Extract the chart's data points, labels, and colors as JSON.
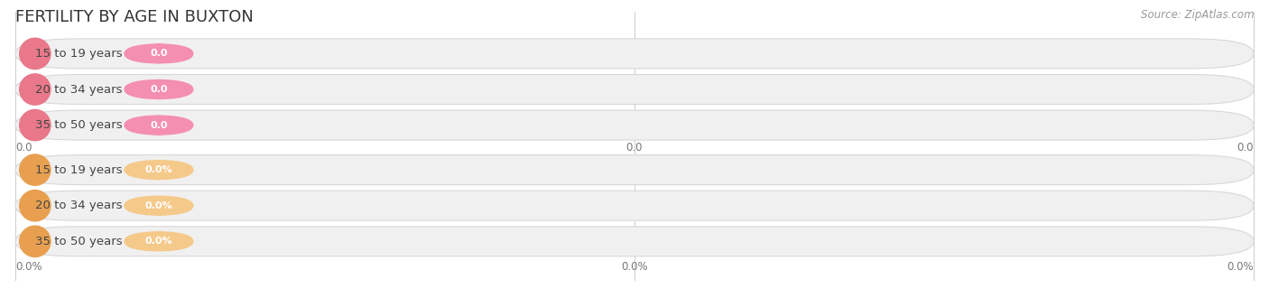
{
  "title": "FERTILITY BY AGE IN BUXTON",
  "source": "Source: ZipAtlas.com",
  "top_group": {
    "labels": [
      "15 to 19 years",
      "20 to 34 years",
      "35 to 50 years"
    ],
    "value_labels": [
      "0.0",
      "0.0",
      "0.0"
    ],
    "pill_color": "#f48fb1",
    "circle_color": "#e8788a",
    "bg_color": "#f0f0f0",
    "border_color": "#d8d8d8"
  },
  "bottom_group": {
    "labels": [
      "15 to 19 years",
      "20 to 34 years",
      "35 to 50 years"
    ],
    "value_labels": [
      "0.0%",
      "0.0%",
      "0.0%"
    ],
    "pill_color": "#f5c98a",
    "circle_color": "#e8a050",
    "bg_color": "#f0f0f0",
    "border_color": "#d8d8d8"
  },
  "top_tick_label": "0.0",
  "bottom_tick_label": "0.0%",
  "figsize": [
    14.06,
    3.3
  ],
  "dpi": 100,
  "background_color": "#ffffff",
  "title_fontsize": 13,
  "label_fontsize": 9.5,
  "value_fontsize": 8,
  "tick_fontsize": 8.5,
  "source_fontsize": 8.5
}
